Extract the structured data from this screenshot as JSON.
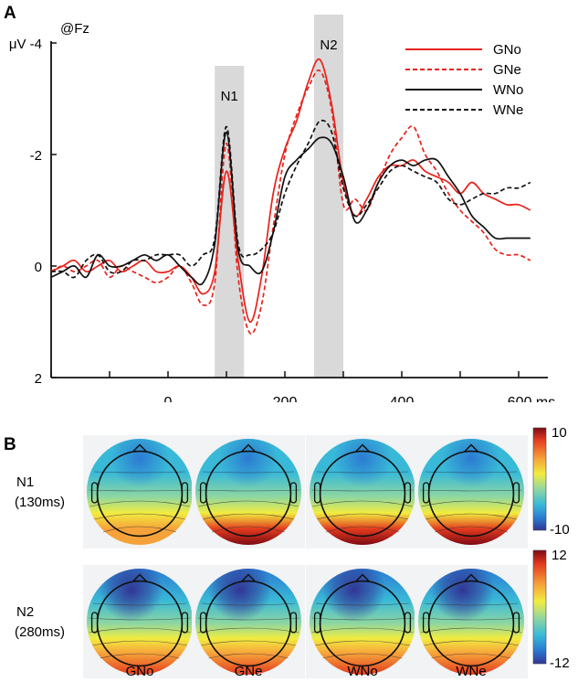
{
  "figure": {
    "panel_a": "A",
    "panel_b": "B",
    "electrode": "@Fz"
  },
  "chart_data": {
    "type": "line",
    "x_unit": "ms",
    "y_unit": "μV",
    "y_inverted": true,
    "xlim": [
      -200,
      650
    ],
    "ylim": [
      -4,
      2
    ],
    "x_ticks": [
      -200,
      -100,
      0,
      100,
      200,
      300,
      400,
      500,
      600
    ],
    "x_tick_labels": [
      "0",
      "200",
      "400",
      "600 ms"
    ],
    "y_tick_labels": [
      "μV -4",
      "-2",
      "0",
      "2"
    ],
    "windows": [
      {
        "label": "N1",
        "x": [
          80,
          130
        ]
      },
      {
        "label": "N2",
        "x": [
          250,
          300
        ]
      }
    ],
    "legend_position": "top-right",
    "x": [
      -200,
      -180,
      -160,
      -140,
      -120,
      -100,
      -80,
      -60,
      -40,
      -20,
      0,
      20,
      40,
      60,
      80,
      100,
      120,
      140,
      160,
      180,
      200,
      220,
      240,
      260,
      280,
      300,
      320,
      340,
      360,
      380,
      400,
      420,
      440,
      460,
      480,
      500,
      520,
      540,
      560,
      580,
      600,
      620
    ],
    "series": [
      {
        "name": "GNo",
        "color": "#e8221b",
        "dash": false,
        "values": [
          0.1,
          0,
          -0.1,
          0.1,
          0,
          -0.1,
          0.1,
          0,
          -0.1,
          0.1,
          0.1,
          0,
          0.2,
          0.5,
          0.1,
          -1.7,
          -0.1,
          1.0,
          0.2,
          -1.3,
          -2.1,
          -2.6,
          -3.3,
          -3.7,
          -2.9,
          -1.5,
          -0.9,
          -1.2,
          -1.6,
          -1.8,
          -1.8,
          -1.9,
          -1.7,
          -1.6,
          -1.5,
          -1.3,
          -1.5,
          -1.3,
          -1.2,
          -1.1,
          -1.1,
          -1.0
        ]
      },
      {
        "name": "GNe",
        "color": "#e8221b",
        "dash": true,
        "values": [
          0.1,
          0,
          0.1,
          0,
          -0.1,
          0.2,
          0,
          0.1,
          0.2,
          0.3,
          0.2,
          0,
          0.3,
          0.7,
          0.3,
          -2.2,
          0.2,
          1.2,
          0.7,
          -0.7,
          -2.0,
          -2.7,
          -3.2,
          -3.5,
          -2.8,
          -1.1,
          -1.2,
          -1.0,
          -1.5,
          -2.0,
          -2.3,
          -2.5,
          -2.0,
          -1.7,
          -1.3,
          -1.0,
          -0.8,
          -0.6,
          -0.3,
          -0.2,
          -0.2,
          -0.1
        ]
      },
      {
        "name": "WNo",
        "color": "#111111",
        "dash": false,
        "values": [
          0.2,
          0.1,
          0,
          0.2,
          -0.2,
          0,
          0,
          -0.1,
          -0.2,
          -0.1,
          -0.2,
          0,
          0.2,
          0.3,
          -0.4,
          -2.4,
          -0.3,
          0,
          0.1,
          -0.6,
          -1.6,
          -1.9,
          -2.1,
          -2.3,
          -2.2,
          -1.6,
          -0.8,
          -1.0,
          -1.5,
          -1.8,
          -1.9,
          -1.8,
          -1.9,
          -1.9,
          -1.6,
          -1.3,
          -0.9,
          -0.7,
          -0.5,
          -0.5,
          -0.5,
          -0.5
        ]
      },
      {
        "name": "WNe",
        "color": "#111111",
        "dash": true,
        "values": [
          0.1,
          0.1,
          0.2,
          -0.1,
          -0.2,
          0.1,
          0.1,
          -0.1,
          -0.1,
          -0.2,
          -0.2,
          -0.2,
          0,
          -0.2,
          -0.5,
          -2.5,
          -0.4,
          -0.2,
          -0.3,
          -0.6,
          -1.3,
          -1.8,
          -2.2,
          -2.6,
          -2.4,
          -1.4,
          -0.9,
          -1.1,
          -1.4,
          -1.7,
          -1.8,
          -1.7,
          -1.6,
          -1.5,
          -1.2,
          -1.1,
          -1.2,
          -1.3,
          -1.3,
          -1.4,
          -1.4,
          -1.5
        ]
      }
    ]
  },
  "topomaps": {
    "rows": [
      {
        "label_1": "N1",
        "label_2": "(130ms)",
        "scale_max": "10",
        "scale_min": "-10"
      },
      {
        "label_1": "N2",
        "label_2": "(280ms)",
        "scale_max": "12",
        "scale_min": "-12"
      }
    ],
    "columns": [
      "GNo",
      "GNe",
      "WNo",
      "WNe"
    ],
    "colormap": [
      "#313695",
      "#2b7bd1",
      "#39b9d8",
      "#8fd7a0",
      "#f2ec3f",
      "#f6a23a",
      "#e33b1f",
      "#7d0a14"
    ]
  }
}
